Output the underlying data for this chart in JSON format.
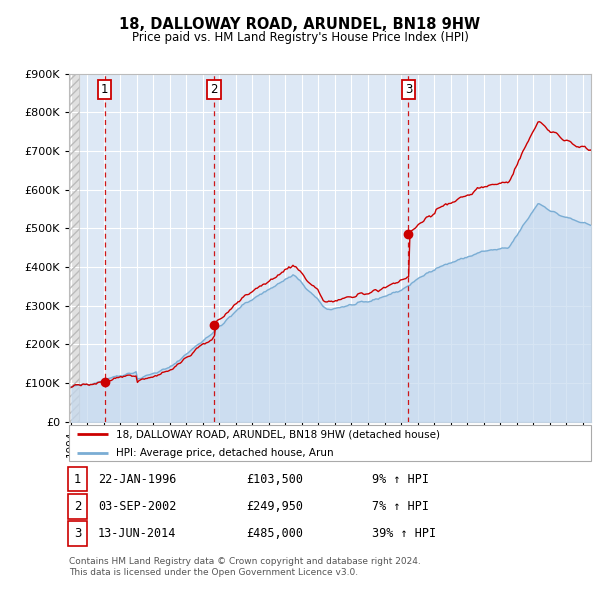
{
  "title": "18, DALLOWAY ROAD, ARUNDEL, BN18 9HW",
  "subtitle": "Price paid vs. HM Land Registry's House Price Index (HPI)",
  "ylim": [
    0,
    900000
  ],
  "yticks": [
    0,
    100000,
    200000,
    300000,
    400000,
    500000,
    600000,
    700000,
    800000,
    900000
  ],
  "ytick_labels": [
    "£0",
    "£100K",
    "£200K",
    "£300K",
    "£400K",
    "£500K",
    "£600K",
    "£700K",
    "£800K",
    "£900K"
  ],
  "xlim_start": 1993.9,
  "xlim_end": 2025.5,
  "background_plot": "#dde8f5",
  "background_hatch_color": "#e0e0e0",
  "grid_color": "#ffffff",
  "line_red": "#cc0000",
  "line_blue": "#7aadd4",
  "fill_blue": "#c5d9ee",
  "sale_dates": [
    1996.055,
    2002.671,
    2014.452
  ],
  "sale_prices": [
    103500,
    249950,
    485000
  ],
  "sale_labels": [
    "1",
    "2",
    "3"
  ],
  "legend_red": "18, DALLOWAY ROAD, ARUNDEL, BN18 9HW (detached house)",
  "legend_blue": "HPI: Average price, detached house, Arun",
  "table_rows": [
    [
      "1",
      "22-JAN-1996",
      "£103,500",
      "9% ↑ HPI"
    ],
    [
      "2",
      "03-SEP-2002",
      "£249,950",
      "7% ↑ HPI"
    ],
    [
      "3",
      "13-JUN-2014",
      "£485,000",
      "39% ↑ HPI"
    ]
  ],
  "footnote1": "Contains HM Land Registry data © Crown copyright and database right 2024.",
  "footnote2": "This data is licensed under the Open Government Licence v3.0."
}
